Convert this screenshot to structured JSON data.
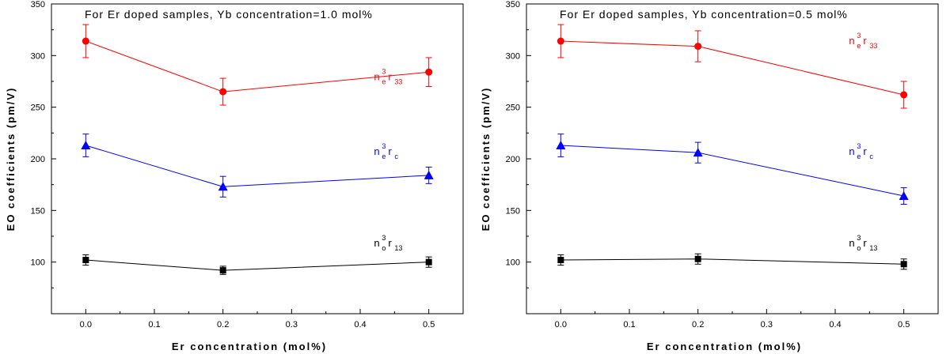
{
  "chart_data": [
    {
      "type": "line",
      "title": "For Er doped samples, Yb concentration=1.0 mol%",
      "xlabel": "Er concentration (mol%)",
      "ylabel": "EO coefficients (pm/V)",
      "xlim": [
        -0.05,
        0.55
      ],
      "ylim": [
        50,
        350
      ],
      "xticks": [
        0.0,
        0.1,
        0.2,
        0.3,
        0.4,
        0.5
      ],
      "xtick_labels": [
        "0.0",
        "0.1",
        "0.2",
        "0.3",
        "0.4",
        "0.5"
      ],
      "yticks": [
        50,
        100,
        150,
        200,
        250,
        300,
        350
      ],
      "ytick_labels": [
        "",
        "100",
        "150",
        "200",
        "250",
        "300",
        "350"
      ],
      "x": [
        0.0,
        0.2,
        0.5
      ],
      "series": [
        {
          "name": "ne3r33",
          "label_main": "n",
          "label_sup": "3",
          "label_sub1": "e",
          "label_rest": "r",
          "label_sub2": "33",
          "color": "#ff0000",
          "marker": "circle",
          "values": [
            314,
            265,
            284
          ],
          "errors": [
            16,
            13,
            14
          ],
          "label_pos": [
            0.42,
            276
          ]
        },
        {
          "name": "ne3rc",
          "label_main": "n",
          "label_sup": "3",
          "label_sub1": "e",
          "label_rest": "r",
          "label_sub2": "c",
          "color": "#0000ff",
          "marker": "triangle",
          "values": [
            213,
            173,
            184
          ],
          "errors": [
            11,
            10,
            8
          ],
          "label_pos": [
            0.42,
            204
          ]
        },
        {
          "name": "no3r13",
          "label_main": "n",
          "label_sup": "3",
          "label_sub1": "o",
          "label_rest": "r",
          "label_sub2": "13",
          "color": "#000000",
          "marker": "square",
          "values": [
            102,
            92,
            100
          ],
          "errors": [
            5,
            4,
            5
          ],
          "label_pos": [
            0.42,
            115
          ]
        }
      ]
    },
    {
      "type": "line",
      "title": "For Er doped samples, Yb concentration=0.5 mol%",
      "xlabel": "Er concentration (mol%)",
      "ylabel": "EO coefficients (pm/V)",
      "xlim": [
        -0.05,
        0.55
      ],
      "ylim": [
        50,
        350
      ],
      "xticks": [
        0.0,
        0.1,
        0.2,
        0.3,
        0.4,
        0.5
      ],
      "xtick_labels": [
        "0.0",
        "0.1",
        "0.2",
        "0.3",
        "0.4",
        "0.5"
      ],
      "yticks": [
        50,
        100,
        150,
        200,
        250,
        300,
        350
      ],
      "ytick_labels": [
        "",
        "100",
        "150",
        "200",
        "250",
        "300",
        "350"
      ],
      "x": [
        0.0,
        0.2,
        0.5
      ],
      "series": [
        {
          "name": "ne3r33",
          "label_main": "n",
          "label_sup": "3",
          "label_sub1": "e",
          "label_rest": "r",
          "label_sub2": "33",
          "color": "#ff0000",
          "marker": "circle",
          "values": [
            314,
            309,
            262
          ],
          "errors": [
            16,
            15,
            13
          ],
          "label_pos": [
            0.42,
            311
          ]
        },
        {
          "name": "ne3rc",
          "label_main": "n",
          "label_sup": "3",
          "label_sub1": "e",
          "label_rest": "r",
          "label_sub2": "c",
          "color": "#0000ff",
          "marker": "triangle",
          "values": [
            213,
            206,
            164
          ],
          "errors": [
            11,
            10,
            8
          ],
          "label_pos": [
            0.42,
            204
          ]
        },
        {
          "name": "no3r13",
          "label_main": "n",
          "label_sup": "3",
          "label_sub1": "o",
          "label_rest": "r",
          "label_sub2": "13",
          "color": "#000000",
          "marker": "square",
          "values": [
            102,
            103,
            98
          ],
          "errors": [
            5,
            5,
            5
          ],
          "label_pos": [
            0.42,
            115
          ]
        }
      ]
    }
  ]
}
